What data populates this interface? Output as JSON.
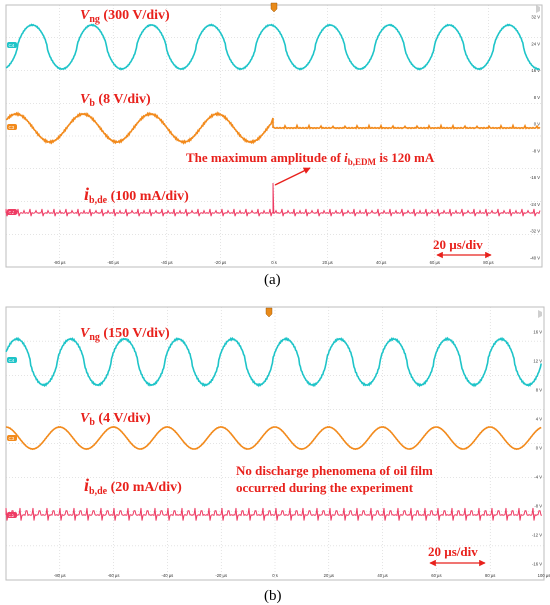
{
  "panels": [
    {
      "caption": "(a)",
      "x_ticks": [
        "-80 µs",
        "-60 µs",
        "-40 µs",
        "-20 µs",
        "0 s",
        "20 µs",
        "40 µs",
        "60 µs",
        "80 µs"
      ],
      "right_ticks": [
        "32 V",
        "24 V",
        "16 V",
        "8 V",
        "0 V",
        "-8 V",
        "-16 V",
        "-24 V",
        "-32 V",
        "-40 V"
      ],
      "channel_tags": [
        "C4",
        "C3",
        "C2"
      ],
      "labels": {
        "vng_main": "V",
        "vng_sub": "ng",
        "vng_scale": " (300 V/div)",
        "vb_main": "V",
        "vb_sub": "b",
        "vb_scale": " (8 V/div)",
        "ib_main": "i",
        "ib_sub": "b,de",
        "ib_scale": " (100 mA/div)",
        "annotation_pre": "The maximum amplitude of ",
        "annotation_i": "i",
        "annotation_sub": "b,EDM",
        "annotation_post": " is 120 mA",
        "timescale": "20 µs/div"
      }
    },
    {
      "caption": "(b)",
      "x_ticks": [
        "-80 µs",
        "-60 µs",
        "-40 µs",
        "-20 µs",
        "0 s",
        "20 µs",
        "40 µs",
        "60 µs",
        "80 µs",
        "100 µs"
      ],
      "right_ticks": [
        "16 V",
        "12 V",
        "8 V",
        "4 V",
        "0 V",
        "-4 V",
        "-8 V",
        "-12 V",
        "-16 V"
      ],
      "channel_tags": [
        "C4",
        "C3",
        "C2"
      ],
      "labels": {
        "vng_main": "V",
        "vng_sub": "ng",
        "vng_scale": " (150 V/div)",
        "vb_main": "V",
        "vb_sub": "b",
        "vb_scale": " (4 V/div)",
        "ib_main": "i",
        "ib_sub": "b,de",
        "ib_scale": " (20 mA/div)",
        "annotation_line1": "No discharge phenomena of oil film",
        "annotation_line2": "occurred during the experiment",
        "timescale": "20 µs/div"
      }
    }
  ],
  "colors": {
    "vng": "#1ec4c8",
    "vb": "#f28a1c",
    "ib": "#ee3b63",
    "label": "#e8211c",
    "grid": "#c9c9c9"
  },
  "chart_data": [
    {
      "type": "line",
      "x_unit": "µs",
      "xlim": [
        -100,
        100
      ],
      "x_ticks": [
        -80,
        -60,
        -40,
        -20,
        0,
        20,
        40,
        60,
        80
      ],
      "series": [
        {
          "name": "Vng (300 V/div)",
          "signal": "sinusoid",
          "cycles_in_window": 9,
          "span": [
            -100,
            100
          ]
        },
        {
          "name": "Vb (8 V/div)",
          "signal": "sinusoid",
          "cycles_in_window": 4,
          "span": [
            -100,
            0
          ],
          "after_trigger": "flat with small spikes"
        },
        {
          "name": "ib,de (100 mA/div)",
          "signal": "periodic spikes",
          "peak_at": 0
        }
      ],
      "annotations": [
        "The maximum amplitude of ib,EDM is 120 mA",
        "20 µs/div"
      ]
    },
    {
      "type": "line",
      "x_unit": "µs",
      "xlim": [
        -100,
        100
      ],
      "x_ticks": [
        -80,
        -60,
        -40,
        -20,
        0,
        20,
        40,
        60,
        80,
        100
      ],
      "series": [
        {
          "name": "Vng (150 V/div)",
          "signal": "sinusoid",
          "cycles_in_window": 10,
          "span": [
            -100,
            100
          ]
        },
        {
          "name": "Vb (4 V/div)",
          "signal": "sinusoid",
          "cycles_in_window": 10,
          "span": [
            -100,
            100
          ]
        },
        {
          "name": "ib,de (20 mA/div)",
          "signal": "periodic spikes"
        }
      ],
      "annotations": [
        "No discharge phenomena of oil film occurred during the experiment",
        "20 µs/div"
      ]
    }
  ]
}
